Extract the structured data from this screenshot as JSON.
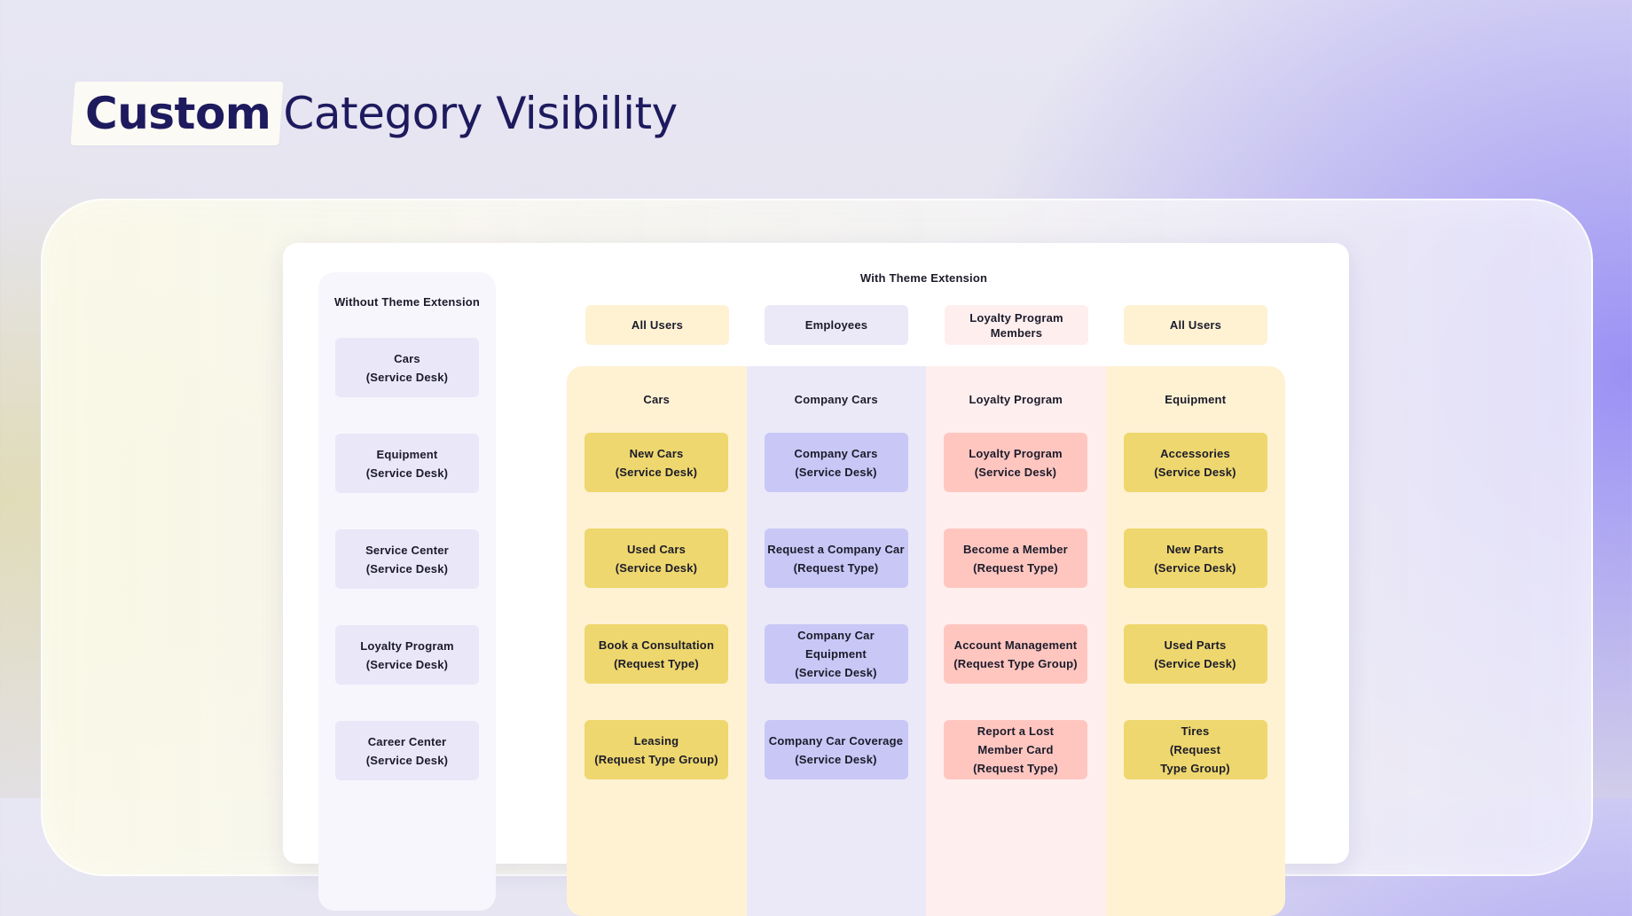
{
  "page_title": {
    "highlight": "Custom",
    "rest": "Category Visibility"
  },
  "colors": {
    "title": "#1e1a5e",
    "cars_col": "#fef2d3",
    "cars_item": "#eed76e",
    "company_col": "#ebe9f8",
    "company_item": "#c9c7f6",
    "loyalty_col": "#ffeeee",
    "loyalty_item": "#ffc6c0",
    "equipment_col": "#fef2d3",
    "equipment_item": "#eed76e"
  },
  "without_extension": {
    "heading": "Without\nTheme Extension",
    "items": [
      "Cars\n(Service Desk)",
      "Equipment\n(Service Desk)",
      "Service Center\n(Service Desk)",
      "Loyalty Program\n(Service Desk)",
      "Career Center\n(Service Desk)"
    ]
  },
  "with_extension": {
    "heading": "With Theme Extension",
    "columns": [
      {
        "audience": "All Users",
        "category": "Cars",
        "items": [
          "New Cars\n(Service Desk)",
          "Used Cars\n(Service Desk)",
          "Book a Consultation\n(Request Type)",
          "Leasing\n(Request Type Group)"
        ]
      },
      {
        "audience": "Employees",
        "category": "Company Cars",
        "items": [
          "Company Cars\n(Service Desk)",
          "Request a Company Car\n(Request Type)",
          "Company Car\nEquipment\n(Service Desk)",
          "Company Car Coverage\n(Service Desk)"
        ]
      },
      {
        "audience": "Loyalty Program\nMembers",
        "category": "Loyalty Program",
        "items": [
          "Loyalty Program\n(Service Desk)",
          "Become a Member\n(Request Type)",
          "Account Management\n(Request Type Group)",
          "Report a Lost\nMember Card\n(Request Type)"
        ]
      },
      {
        "audience": "All Users",
        "category": "Equipment",
        "items": [
          "Accessories\n(Service Desk)",
          "New Parts\n(Service Desk)",
          "Used Parts\n(Service Desk)",
          "Tires\n(Request\nType Group)"
        ]
      }
    ]
  }
}
